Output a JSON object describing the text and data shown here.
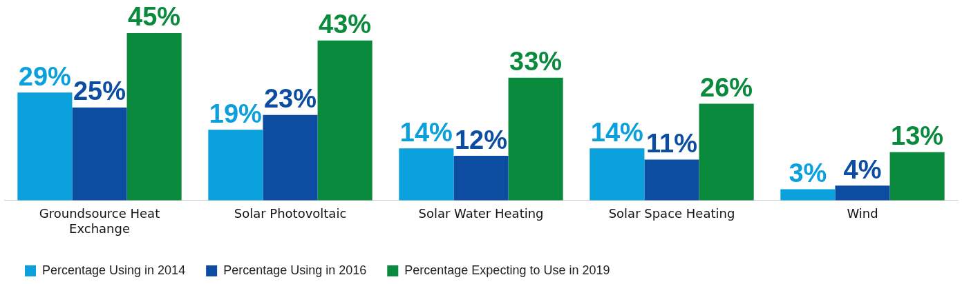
{
  "chart_data": {
    "type": "bar",
    "categories": [
      "Groundsource Heat Exchange",
      "Solar Photovoltaic",
      "Solar Water Heating",
      "Solar Space Heating",
      "Wind"
    ],
    "series": [
      {
        "name": "Percentage Using in 2014",
        "color": "#0aa0dc",
        "values": [
          29,
          19,
          14,
          14,
          3
        ],
        "value_labels": [
          "29%",
          "19%",
          "14%",
          "14%",
          "3%"
        ]
      },
      {
        "name": "Percentage Using in 2016",
        "color": "#0c4da2",
        "values": [
          25,
          23,
          12,
          11,
          4
        ],
        "value_labels": [
          "25%",
          "23%",
          "12%",
          "11%",
          "4%"
        ]
      },
      {
        "name": "Percentage Expecting to Use in 2019",
        "color": "#0a8a3c",
        "values": [
          45,
          43,
          33,
          26,
          13
        ],
        "value_labels": [
          "45%",
          "43%",
          "33%",
          "26%",
          "13%"
        ]
      }
    ],
    "legend": "bottom left",
    "grid": false
  }
}
